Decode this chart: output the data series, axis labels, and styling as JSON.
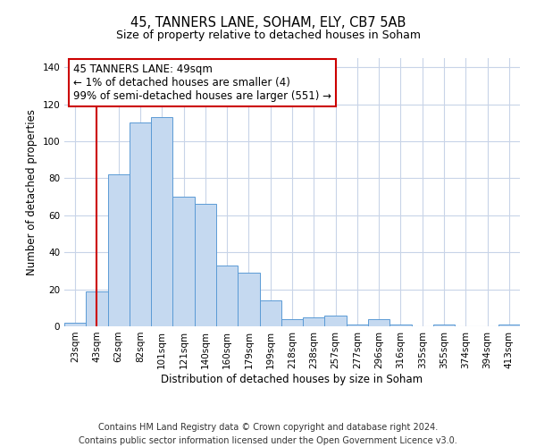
{
  "title": "45, TANNERS LANE, SOHAM, ELY, CB7 5AB",
  "subtitle": "Size of property relative to detached houses in Soham",
  "xlabel": "Distribution of detached houses by size in Soham",
  "ylabel": "Number of detached properties",
  "bar_labels": [
    "23sqm",
    "43sqm",
    "62sqm",
    "82sqm",
    "101sqm",
    "121sqm",
    "140sqm",
    "160sqm",
    "179sqm",
    "199sqm",
    "218sqm",
    "238sqm",
    "257sqm",
    "277sqm",
    "296sqm",
    "316sqm",
    "335sqm",
    "355sqm",
    "374sqm",
    "394sqm",
    "413sqm"
  ],
  "bar_heights": [
    2,
    19,
    82,
    110,
    113,
    70,
    66,
    33,
    29,
    14,
    4,
    5,
    6,
    1,
    4,
    1,
    0,
    1,
    0,
    0,
    1
  ],
  "bar_color": "#c5d9f0",
  "bar_edge_color": "#5b9bd5",
  "vline_x": 1,
  "vline_color": "#cc0000",
  "annotation_title": "45 TANNERS LANE: 49sqm",
  "annotation_line1": "← 1% of detached houses are smaller (4)",
  "annotation_line2": "99% of semi-detached houses are larger (551) →",
  "annotation_box_color": "#ffffff",
  "annotation_box_edge_color": "#cc0000",
  "ylim": [
    0,
    145
  ],
  "yticks": [
    0,
    20,
    40,
    60,
    80,
    100,
    120,
    140
  ],
  "footer_line1": "Contains HM Land Registry data © Crown copyright and database right 2024.",
  "footer_line2": "Contains public sector information licensed under the Open Government Licence v3.0.",
  "bg_color": "#ffffff",
  "grid_color": "#c8d4e8",
  "title_fontsize": 10.5,
  "subtitle_fontsize": 9,
  "axis_label_fontsize": 8.5,
  "tick_fontsize": 7.5,
  "annotation_fontsize": 8.5,
  "footer_fontsize": 7
}
